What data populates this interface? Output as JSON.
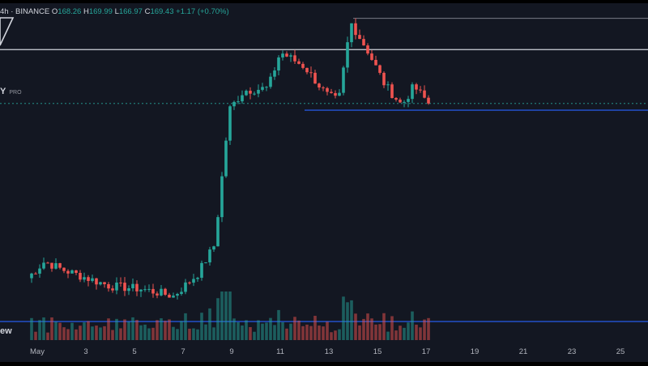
{
  "header": {
    "symbol_fragment": "4h · BINANCE",
    "o_label": "O",
    "o_value": "168.26",
    "h_label": "H",
    "h_value": "169.99",
    "l_label": "L",
    "l_value": "166.97",
    "c_label": "C",
    "c_value": "169.43",
    "change": "+1.17 (+0.70%)"
  },
  "overlay": {
    "pro_text": "Y",
    "pro_sup": "PRO",
    "volume_text": "ew"
  },
  "colors": {
    "background": "#131722",
    "up": "#26a69a",
    "down": "#ef5350",
    "up_volume": "#26a69a",
    "down_volume": "#ef5350",
    "white_line": "#b2b5be",
    "blue_line": "#2962ff",
    "axis_text": "#b2b5be"
  },
  "chart_data": {
    "type": "candlestick",
    "x_tick_labels": [
      "May",
      "3",
      "5",
      "7",
      "9",
      "11",
      "13",
      "15",
      "17",
      "19",
      "21",
      "23",
      "25"
    ],
    "x_tick_days": [
      1,
      3,
      5,
      7,
      9,
      11,
      13,
      15,
      17,
      19,
      21,
      23,
      25
    ],
    "price_range": [
      100,
      182
    ],
    "days_range": [
      29.6,
      26.4
    ],
    "horizontal_levels": [
      {
        "price": 178.4,
        "color": "gray",
        "from_day": 14.0
      },
      {
        "price": 170.9,
        "color": "light",
        "from_day": null
      },
      {
        "price": 158.0,
        "color": "dotted-teal",
        "from_day": null
      },
      {
        "price": 156.4,
        "color": "blue",
        "from_day": 12.0
      },
      {
        "price": 105.8,
        "color": "blue",
        "from_day": null
      }
    ],
    "key_points": [
      {
        "day": 0.6,
        "price": 116.2
      },
      {
        "day": 1.3,
        "price": 120.2
      },
      {
        "day": 2.0,
        "price": 118.3
      },
      {
        "day": 4.0,
        "price": 114.3
      },
      {
        "day": 5.3,
        "price": 113.6
      },
      {
        "day": 6.6,
        "price": 111.9
      },
      {
        "day": 7.6,
        "price": 117.2
      },
      {
        "day": 8.3,
        "price": 124.2
      },
      {
        "day": 8.9,
        "price": 156.5
      },
      {
        "day": 9.5,
        "price": 161.1
      },
      {
        "day": 10.5,
        "price": 161.7
      },
      {
        "day": 11.0,
        "price": 170.3
      },
      {
        "day": 12.0,
        "price": 166.8
      },
      {
        "day": 12.9,
        "price": 160.1
      },
      {
        "day": 13.4,
        "price": 158.5
      },
      {
        "day": 13.9,
        "price": 177.4
      },
      {
        "day": 14.6,
        "price": 170.6
      },
      {
        "day": 15.3,
        "price": 162.5
      },
      {
        "day": 16.0,
        "price": 157.6
      },
      {
        "day": 16.5,
        "price": 162.1
      },
      {
        "day": 17.2,
        "price": 157.4
      },
      {
        "day": 17.2,
        "price": 158.3
      }
    ]
  }
}
